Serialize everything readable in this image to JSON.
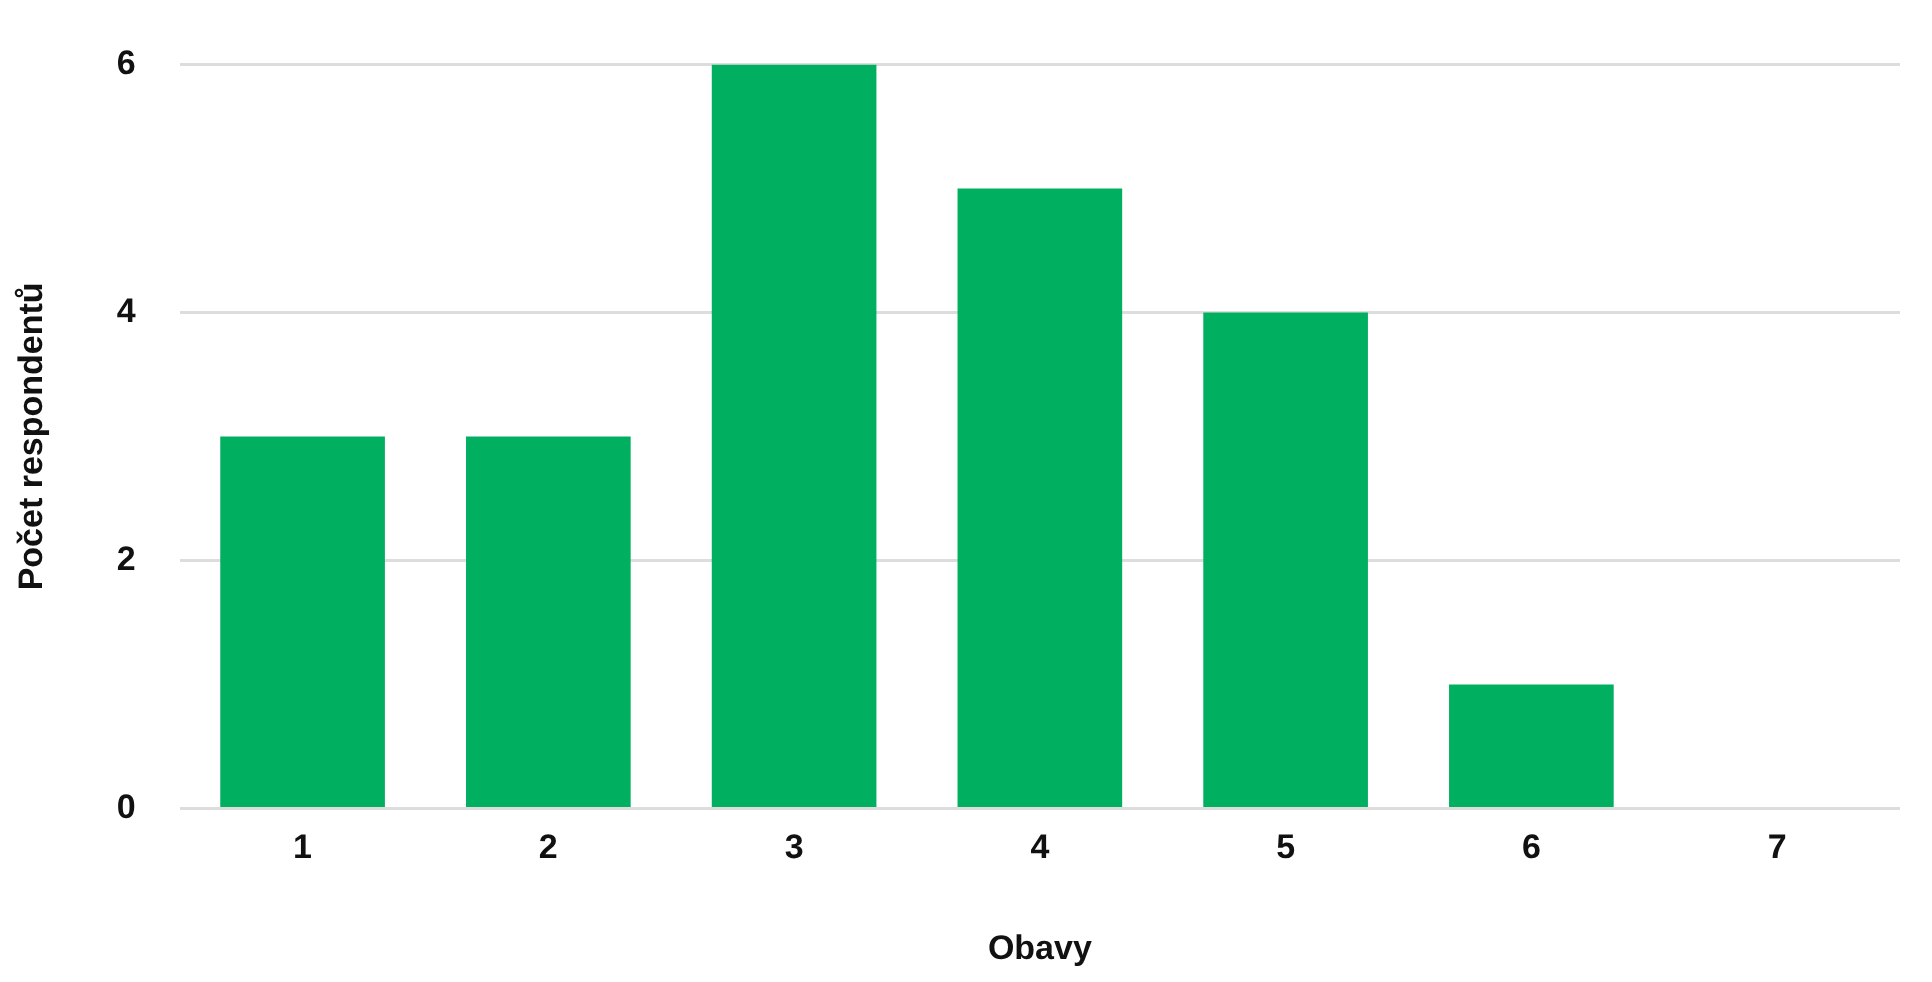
{
  "chart_data": {
    "type": "bar",
    "xlabel": "Obavy",
    "ylabel": "Počet respondentů",
    "categories": [
      "1",
      "2",
      "3",
      "4",
      "5",
      "6",
      "7"
    ],
    "values": [
      3,
      3,
      6,
      5,
      4,
      1,
      0
    ],
    "color": "#00b060",
    "ylim": [
      0,
      6
    ],
    "yticks": [
      0,
      2,
      4,
      6
    ],
    "grid": "y",
    "legend": false
  }
}
